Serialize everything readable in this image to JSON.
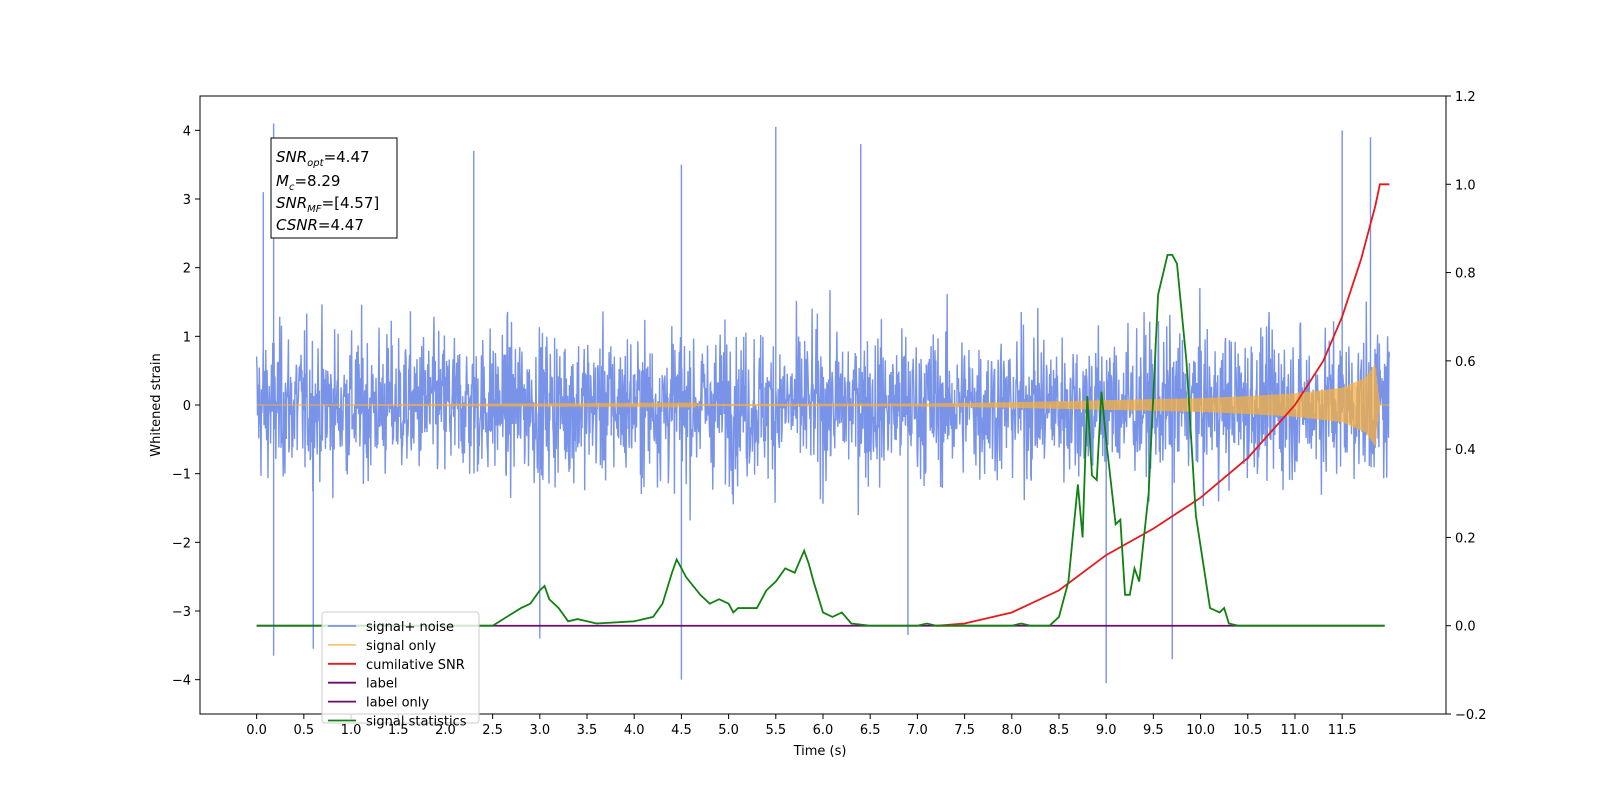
{
  "chart_data": {
    "type": "line",
    "xlabel": "Time (s)",
    "ylabel_left": "Whitened strain",
    "xlim": [
      -0.6,
      12.6
    ],
    "ylim_left": [
      -4.5,
      4.5
    ],
    "ylim_right": [
      -0.2,
      1.2
    ],
    "x_ticks": [
      "0.0",
      "0.5",
      "1.0",
      "1.5",
      "2.0",
      "2.5",
      "3.0",
      "3.5",
      "4.0",
      "4.5",
      "5.0",
      "5.5",
      "6.0",
      "6.5",
      "7.0",
      "7.5",
      "8.0",
      "8.5",
      "9.0",
      "9.5",
      "10.0",
      "10.5",
      "11.0",
      "11.5"
    ],
    "y_ticks_left": [
      "−4",
      "−3",
      "−2",
      "−1",
      "0",
      "1",
      "2",
      "3",
      "4"
    ],
    "y_ticks_right": [
      "−0.2",
      "0.0",
      "0.2",
      "0.4",
      "0.6",
      "0.8",
      "1.0",
      "1.2"
    ],
    "grid": false,
    "legend_position": "lower-left",
    "annotation": {
      "snr_opt": {
        "main": "SNR",
        "sub": "opt",
        "value": "=4.47"
      },
      "mc": {
        "main": "M",
        "sub": "c",
        "value": "=8.29"
      },
      "snr_mf": {
        "main": "SNR",
        "sub": "MF",
        "value": "=[4.57]"
      },
      "csnr": {
        "main": "CSNR",
        "value": "=4.47"
      }
    },
    "series": [
      {
        "name": "signal+ noise",
        "axis": "left",
        "color": "#7893e8",
        "style": "noisy band",
        "x_range": [
          0.0,
          12.0
        ],
        "envelope_approx": [
          -2.5,
          2.5
        ],
        "spikes": [
          [
            0.07,
            3.1
          ],
          [
            0.18,
            4.1
          ],
          [
            0.18,
            -3.65
          ],
          [
            0.6,
            -3.55
          ],
          [
            2.3,
            3.7
          ],
          [
            3.0,
            -3.4
          ],
          [
            4.5,
            3.5
          ],
          [
            4.5,
            -4.0
          ],
          [
            5.5,
            4.05
          ],
          [
            6.4,
            3.8
          ],
          [
            6.9,
            -3.35
          ],
          [
            9.0,
            -4.05
          ],
          [
            9.7,
            -3.7
          ],
          [
            11.5,
            4.0
          ],
          [
            11.8,
            3.9
          ]
        ]
      },
      {
        "name": "signal only",
        "axis": "left",
        "color": "#f5b041",
        "style": "chirp",
        "x": [
          0.0,
          7.0,
          8.0,
          9.0,
          10.0,
          10.5,
          11.0,
          11.5,
          11.75,
          11.85,
          11.9,
          12.0
        ],
        "amplitude": [
          0.0,
          0.02,
          0.04,
          0.07,
          0.1,
          0.13,
          0.17,
          0.25,
          0.4,
          0.6,
          0.0,
          0.0
        ]
      },
      {
        "name": "cumilative SNR",
        "axis": "right",
        "color": "#e41a1c",
        "x": [
          7.2,
          7.5,
          8.0,
          8.5,
          9.0,
          9.5,
          10.0,
          10.5,
          11.0,
          11.3,
          11.5,
          11.7,
          11.85,
          11.9,
          12.0
        ],
        "values": [
          0.0,
          0.005,
          0.03,
          0.08,
          0.16,
          0.22,
          0.29,
          0.38,
          0.5,
          0.6,
          0.7,
          0.83,
          0.95,
          1.0,
          1.0
        ]
      },
      {
        "name": "label",
        "axis": "right",
        "color": "#6a0d6a",
        "x": [
          0.0,
          11.95
        ],
        "values": [
          0.0,
          0.0
        ]
      },
      {
        "name": "label only",
        "axis": "right",
        "color": "#6a0d6a",
        "hidden": true
      },
      {
        "name": "signal statistics",
        "axis": "right",
        "color": "#128012",
        "x": [
          0.0,
          2.5,
          2.8,
          2.9,
          3.0,
          3.05,
          3.1,
          3.2,
          3.3,
          3.4,
          3.5,
          3.6,
          4.0,
          4.2,
          4.3,
          4.4,
          4.45,
          4.55,
          4.7,
          4.8,
          4.9,
          5.0,
          5.05,
          5.1,
          5.3,
          5.4,
          5.5,
          5.6,
          5.7,
          5.8,
          5.85,
          5.9,
          6.0,
          6.1,
          6.2,
          6.3,
          6.5,
          7.0,
          7.1,
          7.2,
          8.0,
          8.1,
          8.2,
          8.4,
          8.5,
          8.6,
          8.7,
          8.75,
          8.8,
          8.85,
          8.9,
          8.95,
          9.0,
          9.1,
          9.15,
          9.2,
          9.25,
          9.3,
          9.35,
          9.4,
          9.45,
          9.55,
          9.65,
          9.7,
          9.75,
          9.85,
          9.95,
          10.1,
          10.2,
          10.25,
          10.3,
          10.4,
          11.95
        ],
        "values": [
          0.0,
          0.0,
          0.04,
          0.05,
          0.08,
          0.09,
          0.06,
          0.04,
          0.01,
          0.015,
          0.01,
          0.005,
          0.01,
          0.02,
          0.05,
          0.12,
          0.15,
          0.11,
          0.07,
          0.05,
          0.06,
          0.05,
          0.03,
          0.04,
          0.04,
          0.08,
          0.1,
          0.13,
          0.12,
          0.17,
          0.14,
          0.1,
          0.03,
          0.02,
          0.03,
          0.005,
          0.0,
          0.0,
          0.005,
          0.0,
          0.0,
          0.005,
          0.0,
          0.0,
          0.02,
          0.1,
          0.32,
          0.2,
          0.52,
          0.34,
          0.33,
          0.53,
          0.42,
          0.23,
          0.24,
          0.07,
          0.07,
          0.13,
          0.1,
          0.2,
          0.3,
          0.75,
          0.84,
          0.84,
          0.82,
          0.6,
          0.25,
          0.04,
          0.03,
          0.04,
          0.005,
          0.0,
          0.0
        ]
      }
    ]
  }
}
